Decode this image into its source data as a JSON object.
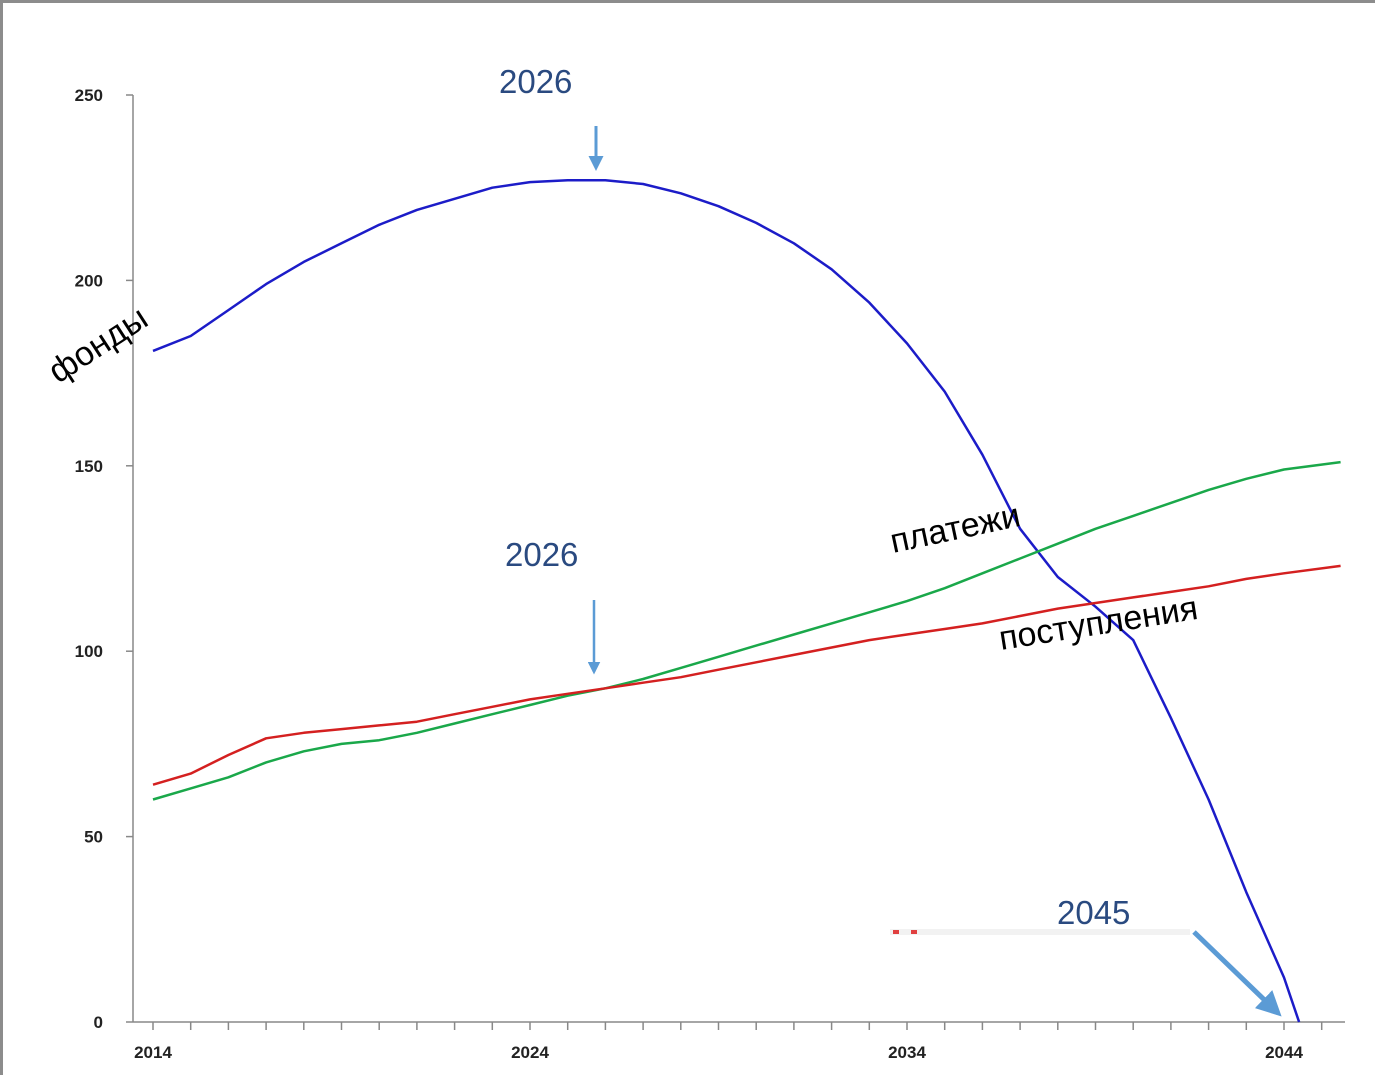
{
  "chart_data": {
    "type": "line",
    "title": "",
    "xlabel": "",
    "ylabel": "",
    "xlim": [
      2014,
      2045.5
    ],
    "ylim": [
      0,
      250
    ],
    "x_ticks": [
      "2014",
      "2024",
      "2034",
      "2044"
    ],
    "y_ticks": [
      "0",
      "50",
      "100",
      "150",
      "200",
      "250"
    ],
    "grid": false,
    "series": [
      {
        "name": "фонды",
        "color": "#1c1cc8",
        "x": [
          2014,
          2015,
          2016,
          2017,
          2018,
          2019,
          2020,
          2021,
          2022,
          2023,
          2024,
          2025,
          2026,
          2027,
          2028,
          2029,
          2030,
          2031,
          2032,
          2033,
          2034,
          2035,
          2036,
          2037,
          2038,
          2039,
          2040,
          2041,
          2042,
          2043,
          2044,
          2044.4
        ],
        "y": [
          181,
          185,
          192,
          199,
          205,
          210,
          215,
          219,
          222,
          225,
          226.5,
          227,
          227,
          226,
          223.5,
          220,
          215.5,
          210,
          203,
          194,
          183,
          170,
          153,
          133,
          120,
          112,
          103,
          82,
          60,
          35,
          12,
          0
        ]
      },
      {
        "name": "платежи",
        "color": "#1aa84a",
        "x": [
          2014,
          2015,
          2016,
          2017,
          2018,
          2019,
          2020,
          2021,
          2022,
          2023,
          2024,
          2025,
          2026,
          2027,
          2028,
          2029,
          2030,
          2031,
          2032,
          2033,
          2034,
          2035,
          2036,
          2037,
          2038,
          2039,
          2040,
          2041,
          2042,
          2043,
          2044,
          2045.5
        ],
        "y": [
          60,
          63,
          66,
          70,
          73,
          75,
          76,
          78,
          80.5,
          83,
          85.5,
          88,
          90,
          92.5,
          95.5,
          98.5,
          101.5,
          104.5,
          107.5,
          110.5,
          113.5,
          117,
          121,
          125,
          129,
          133,
          136.5,
          140,
          143.5,
          146.5,
          149,
          151
        ]
      },
      {
        "name": "поступления",
        "color": "#d42020",
        "x": [
          2014,
          2015,
          2016,
          2017,
          2018,
          2019,
          2020,
          2021,
          2022,
          2023,
          2024,
          2025,
          2026,
          2027,
          2028,
          2029,
          2030,
          2031,
          2032,
          2033,
          2034,
          2035,
          2036,
          2037,
          2038,
          2039,
          2040,
          2041,
          2042,
          2043,
          2044,
          2045.5
        ],
        "y": [
          64,
          67,
          72,
          76.5,
          78,
          79,
          80,
          81,
          83,
          85,
          87,
          88.5,
          90,
          91.5,
          93,
          95,
          97,
          99,
          101,
          103,
          104.5,
          106,
          107.5,
          109.5,
          111.5,
          113,
          114.5,
          116,
          117.5,
          119.5,
          121,
          123
        ]
      }
    ],
    "annotations": [
      {
        "text": "2026",
        "x": 2026,
        "y": 227
      },
      {
        "text": "2026",
        "x": 2026,
        "y": 90
      },
      {
        "text": "2045",
        "x": 2044.2,
        "y": 0
      }
    ]
  }
}
